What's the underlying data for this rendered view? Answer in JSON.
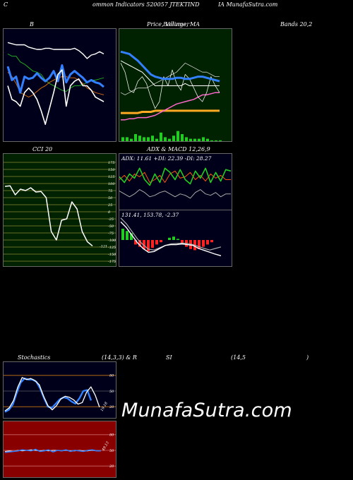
{
  "header": {
    "left": "C",
    "middle": "ommon  Indicators 520057 JTEKTIND",
    "right": "IA MunafaSutra.com"
  },
  "panel_titles": {
    "bollinger": "B",
    "price": "Price,  Volume,  MA",
    "price_overlap": "Bollinger",
    "bands": "Bands 20,2",
    "cci": "CCI 20",
    "adx_macd": "ADX  & MACD 12,26,9",
    "stoch_a": "Stochastics",
    "stoch_b": "(14,3,3) & R",
    "stoch_c": "SI",
    "stoch_d": "(14,5",
    "stoch_e": ")"
  },
  "adx_label": "ADX: 11.61  +DI: 22.39 -DI: 28.27",
  "macd_label": "131.41,  153.78,  -2.37",
  "cci_value_label": "-121",
  "stoch_value_label": "19.18",
  "rsi_value_label": "49.13",
  "watermark": "MunafaSutra.com",
  "colors": {
    "panel_bg": "#00001a",
    "price_bg": "#002200",
    "cci_bg": "#002200",
    "rsi_bg": "#880000",
    "blue": "#3380ff",
    "green": "#22cc22",
    "orange": "#ff7711"
  },
  "chart_data": [
    {
      "type": "line",
      "panel": "bollinger",
      "series": [
        {
          "values": [
            78,
            76,
            76,
            71,
            69,
            66,
            63,
            62,
            60,
            55,
            52,
            50,
            48,
            46,
            45,
            48,
            50,
            50,
            51,
            53,
            55,
            55,
            56,
            57
          ]
        },
        {
          "values": [
            88,
            87,
            86,
            86,
            86,
            84,
            83,
            82,
            82,
            83,
            83,
            82,
            82,
            82,
            82,
            82,
            83,
            81,
            78,
            74,
            77,
            78,
            80,
            78
          ]
        },
        {
          "values": [
            67,
            55,
            58,
            44,
            58,
            56,
            57,
            61,
            57,
            54,
            57,
            63,
            54,
            68,
            53,
            60,
            63,
            60,
            57,
            53,
            55,
            53,
            52,
            49
          ]
        },
        {
          "values": [
            62,
            58,
            52,
            44,
            42,
            40,
            42,
            45,
            48,
            50,
            53,
            55,
            57,
            58,
            58,
            57,
            57,
            55,
            52,
            48,
            46,
            44,
            43,
            42
          ]
        },
        {
          "values": [
            50,
            38,
            36,
            32,
            44,
            48,
            44,
            38,
            28,
            16,
            30,
            44,
            60,
            64,
            32,
            50,
            54,
            56,
            50,
            50,
            46,
            40,
            38,
            36
          ]
        }
      ]
    },
    {
      "type": "line",
      "panel": "price",
      "series": [
        {
          "values": [
            80,
            79,
            78,
            75,
            72,
            68,
            64,
            60,
            58,
            57,
            56,
            56,
            56,
            57,
            57,
            56,
            56,
            57,
            58,
            58,
            57,
            56,
            55,
            54
          ]
        },
        {
          "values": [
            72,
            70,
            68,
            66,
            64,
            62,
            58,
            54,
            50,
            50,
            50,
            50,
            50,
            50,
            50,
            52,
            50,
            50,
            50,
            50,
            50,
            50,
            50,
            50
          ]
        },
        {
          "values": [
            44,
            42,
            44,
            46,
            48,
            48,
            48,
            50,
            52,
            54,
            56,
            58,
            60,
            62,
            66,
            70,
            68,
            66,
            64,
            62,
            62,
            60,
            58,
            58
          ]
        },
        {
          "values": [
            70,
            62,
            46,
            44,
            54,
            58,
            52,
            40,
            30,
            36,
            58,
            50,
            64,
            52,
            46,
            60,
            56,
            48,
            40,
            36,
            44,
            58,
            50,
            44
          ]
        },
        {
          "values": [
            26,
            26,
            26,
            26,
            26,
            27,
            27,
            27,
            28,
            28,
            28,
            28,
            28,
            28,
            28,
            28,
            28,
            28,
            28,
            28,
            28,
            28,
            28,
            28
          ]
        },
        {
          "values": [
            20,
            20,
            21,
            21,
            22,
            22,
            22,
            23,
            24,
            26,
            28,
            30,
            32,
            34,
            35,
            36,
            37,
            38,
            40,
            42,
            42,
            43,
            44,
            44
          ]
        }
      ],
      "volume": [
        3,
        3,
        2,
        5,
        4,
        3,
        3,
        4,
        2,
        6,
        3,
        2,
        4,
        7,
        5,
        3,
        2,
        2,
        2,
        3,
        2,
        1,
        1,
        1
      ]
    },
    {
      "type": "line",
      "panel": "cci",
      "yticks": [
        175,
        150,
        125,
        100,
        75,
        50,
        25,
        0,
        -25,
        -50,
        -75,
        -100,
        -125,
        -150,
        -175
      ],
      "ylim": [
        -175,
        175
      ],
      "series": [
        {
          "values": [
            90,
            92,
            60,
            80,
            75,
            85,
            70,
            72,
            50,
            -70,
            -100,
            -30,
            -25,
            35,
            10,
            -70,
            -106,
            -121
          ]
        }
      ]
    },
    {
      "type": "line",
      "panel": "adx",
      "series": [
        {
          "values": [
            22,
            25,
            21,
            26,
            24,
            27,
            20,
            22,
            25,
            20,
            26,
            28,
            23,
            24,
            27,
            22,
            25,
            21,
            26,
            23,
            25,
            22,
            22
          ]
        },
        {
          "values": [
            24,
            20,
            26,
            23,
            30,
            22,
            18,
            26,
            20,
            30,
            27,
            22,
            29,
            22,
            19,
            28,
            23,
            30,
            20,
            27,
            21,
            29,
            28
          ]
        },
        {
          "values": [
            14,
            12,
            10,
            12,
            15,
            13,
            10,
            11,
            13,
            14,
            12,
            10,
            12,
            11,
            9,
            13,
            15,
            12,
            11,
            13,
            10,
            12,
            12
          ]
        }
      ]
    },
    {
      "type": "line",
      "panel": "macd",
      "series": [
        {
          "values": [
            220,
            205,
            185,
            165,
            150,
            140,
            142,
            150,
            158,
            160,
            160,
            162,
            160,
            158,
            150,
            145,
            140,
            135,
            131
          ]
        },
        {
          "values": [
            230,
            215,
            195,
            175,
            160,
            148,
            146,
            152,
            158,
            162,
            163,
            164,
            163,
            160,
            155,
            150,
            146,
            150,
            154
          ]
        }
      ],
      "histogram": [
        10,
        8,
        6,
        -4,
        -6,
        -8,
        -10,
        -7,
        -4,
        -2,
        0,
        2,
        3,
        1,
        -4,
        -6,
        -8,
        -9,
        -8,
        -6,
        -4,
        -2
      ]
    },
    {
      "type": "line",
      "panel": "stochastics",
      "yticks": [
        80,
        50,
        20
      ],
      "ylim": [
        0,
        100
      ],
      "series": [
        {
          "values": [
            12,
            18,
            32,
            58,
            76,
            72,
            74,
            70,
            62,
            40,
            22,
            14,
            22,
            35,
            40,
            38,
            33,
            25,
            28,
            48,
            58,
            42,
            19
          ]
        },
        {
          "values": [
            10,
            14,
            24,
            46,
            66,
            74,
            72,
            72,
            68,
            55,
            36,
            20,
            18,
            26,
            34,
            38,
            36,
            30,
            26,
            36,
            50,
            52,
            32
          ]
        }
      ]
    },
    {
      "type": "line",
      "panel": "rsi",
      "yticks": [
        80,
        50,
        20
      ],
      "ylim": [
        0,
        100
      ],
      "series": [
        {
          "values": [
            46,
            47,
            48,
            49,
            51,
            50,
            49,
            52,
            48,
            49,
            51,
            47,
            50,
            49,
            51,
            48,
            50,
            49,
            48,
            50,
            51,
            49,
            49
          ]
        },
        {
          "values": [
            48,
            49,
            48,
            50,
            49,
            50,
            51,
            50,
            49,
            50,
            49,
            50,
            50,
            49,
            50,
            49,
            49,
            50,
            49,
            49,
            50,
            49,
            49
          ]
        }
      ]
    }
  ]
}
